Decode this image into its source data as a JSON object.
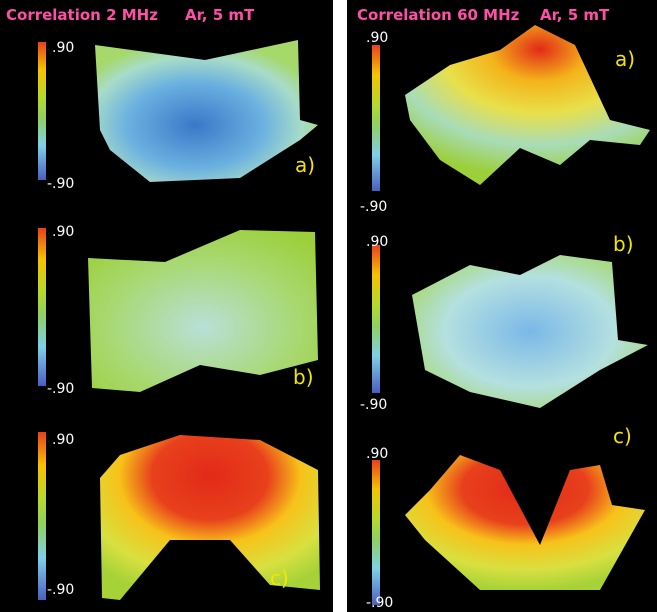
{
  "panels": [
    {
      "header": {
        "title": "Correlation 2 MHz",
        "condition": "Ar, 5 mT"
      },
      "plots": [
        {
          "scale_max": ".90",
          "scale_min": "-.90",
          "label": "a)"
        },
        {
          "scale_max": ".90",
          "scale_min": "-.90",
          "label": "b)"
        },
        {
          "scale_max": ".90",
          "scale_min": "-.90",
          "label": "c)"
        }
      ]
    },
    {
      "header": {
        "title": "Correlation 60 MHz",
        "condition": "Ar, 5 mT"
      },
      "plots": [
        {
          "scale_max": ".90",
          "scale_min": "-.90",
          "label": "a)"
        },
        {
          "scale_max": ".90",
          "scale_min": "-.90",
          "label": "b)"
        },
        {
          "scale_max": ".90",
          "scale_min": "-.90",
          "label": "c)"
        }
      ]
    }
  ]
}
